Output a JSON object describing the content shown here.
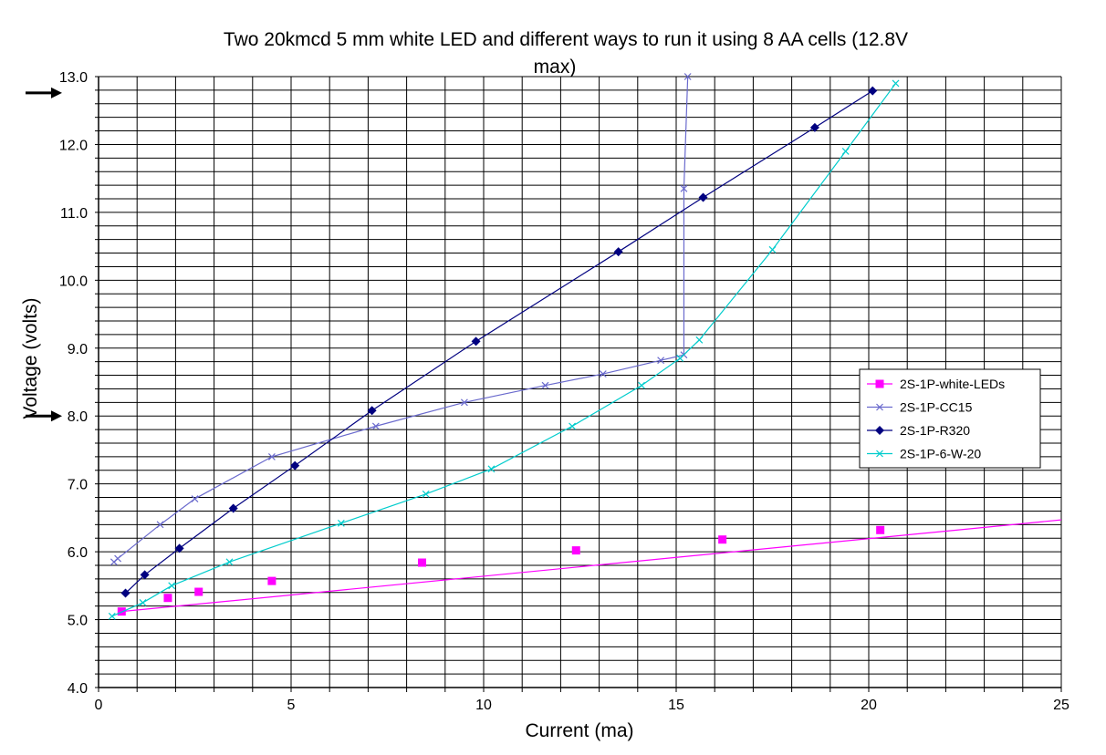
{
  "chart_data": {
    "type": "line",
    "title_line1": "Two 20kmcd 5 mm white LED and different ways to run it using 8 AA cells (12.8V",
    "title_line2": "max)",
    "xlabel": "Current (ma)",
    "ylabel": "Voltage (volts)",
    "xlim": [
      0,
      25
    ],
    "ylim": [
      4.0,
      13.0
    ],
    "x_ticks": [
      "0",
      "5",
      "10",
      "15",
      "20",
      "25"
    ],
    "y_ticks": [
      "4.0",
      "5.0",
      "6.0",
      "7.0",
      "8.0",
      "9.0",
      "10.0",
      "11.0",
      "12.0",
      "13.0"
    ],
    "grid": true,
    "legend_position": "right",
    "arrows_at_voltage": [
      12.8,
      8.0
    ],
    "series": [
      {
        "name": "2S-1P-white-LEDs",
        "color": "#ff00ff",
        "marker": "square",
        "x": [
          0.6,
          1.8,
          2.6,
          4.5,
          8.4,
          12.4,
          16.2,
          20.3
        ],
        "y": [
          5.12,
          5.32,
          5.41,
          5.57,
          5.84,
          6.02,
          6.18,
          6.32
        ],
        "trend_x": [
          0.6,
          25.0
        ],
        "trend_y": [
          5.12,
          6.47
        ]
      },
      {
        "name": "2S-1P-CC15",
        "color": "#6a6acd",
        "marker": "x",
        "x": [
          0.4,
          0.5,
          1.6,
          2.5,
          4.5,
          7.2,
          9.5,
          11.6,
          13.1,
          14.6,
          15.2,
          15.2,
          15.3
        ],
        "y": [
          5.85,
          5.9,
          6.4,
          6.78,
          7.4,
          7.85,
          8.2,
          8.45,
          8.62,
          8.82,
          8.9,
          11.35,
          13.0
        ]
      },
      {
        "name": "2S-1P-R320",
        "color": "#000080",
        "marker": "diamond",
        "x": [
          0.7,
          1.2,
          2.1,
          3.5,
          5.1,
          7.1,
          9.8,
          13.5,
          15.7,
          18.6,
          20.1
        ],
        "y": [
          5.39,
          5.66,
          6.05,
          6.64,
          7.27,
          8.08,
          9.1,
          10.42,
          11.22,
          12.25,
          12.79
        ]
      },
      {
        "name": "2S-1P-6-W-20",
        "color": "#00cccc",
        "marker": "x",
        "x": [
          0.35,
          1.15,
          1.9,
          3.4,
          6.3,
          8.5,
          10.2,
          12.3,
          14.1,
          15.1,
          15.6,
          17.5,
          19.4,
          20.7
        ],
        "y": [
          5.05,
          5.25,
          5.5,
          5.85,
          6.42,
          6.85,
          7.22,
          7.85,
          8.45,
          8.85,
          9.12,
          10.45,
          11.9,
          12.9
        ]
      }
    ]
  }
}
